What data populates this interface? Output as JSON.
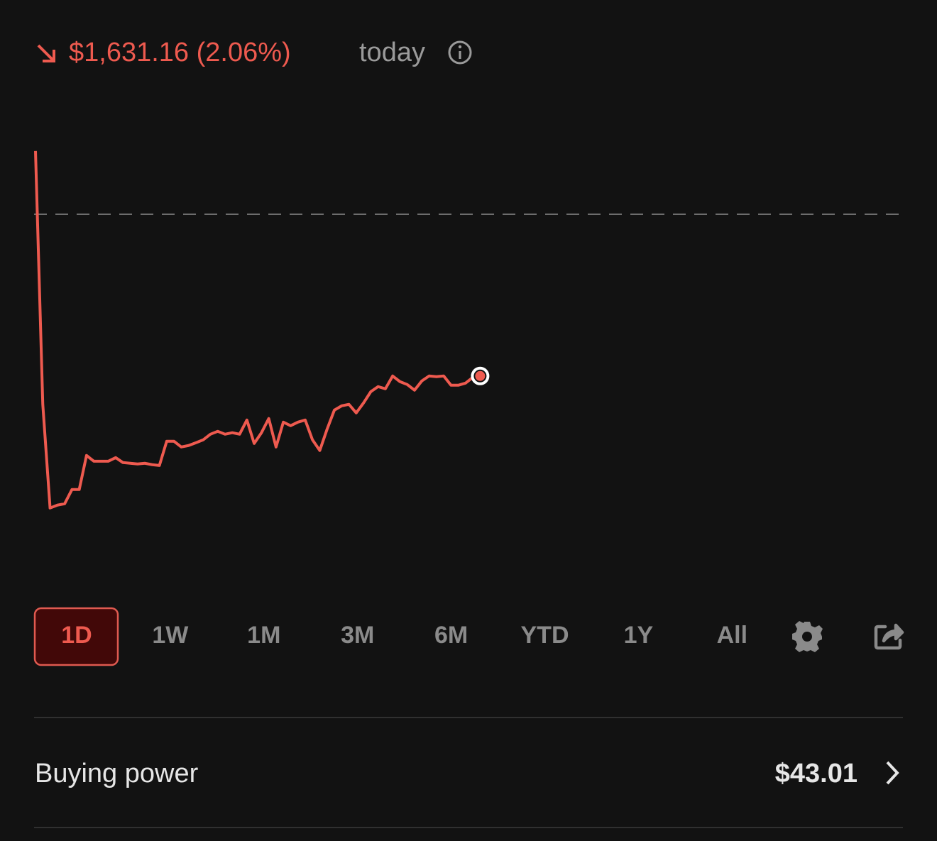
{
  "header": {
    "change": "$1,631.16 (2.06%)",
    "period": "today"
  },
  "chart_data": {
    "type": "line",
    "color": "#ee5a4f",
    "values": [
      637,
      -1917,
      -2962,
      -2933,
      -2919,
      -2776,
      -2776,
      -2432,
      -2490,
      -2490,
      -2490,
      -2454,
      -2504,
      -2511,
      -2518,
      -2511,
      -2525,
      -2533,
      -2289,
      -2289,
      -2347,
      -2332,
      -2304,
      -2275,
      -2218,
      -2189,
      -2218,
      -2203,
      -2218,
      -2075,
      -2311,
      -2203,
      -2060,
      -2347,
      -2096,
      -2132,
      -2096,
      -2075,
      -2275,
      -2382,
      -2168,
      -1975,
      -1932,
      -1917,
      -2003,
      -1903,
      -1789,
      -1738,
      -1760,
      -1631,
      -1688,
      -1717,
      -1774,
      -1681,
      -1631,
      -1638,
      -1631,
      -1724,
      -1724,
      -1703,
      -1645,
      -1631.16
    ],
    "xlim": [
      0,
      119
    ],
    "ylim": [
      -3500,
      750
    ],
    "baseline": 0
  },
  "range_tabs": [
    "1D",
    "1W",
    "1M",
    "3M",
    "6M",
    "YTD",
    "1Y",
    "All"
  ],
  "buying_power": {
    "label": "Buying power",
    "value": "$43.01"
  }
}
